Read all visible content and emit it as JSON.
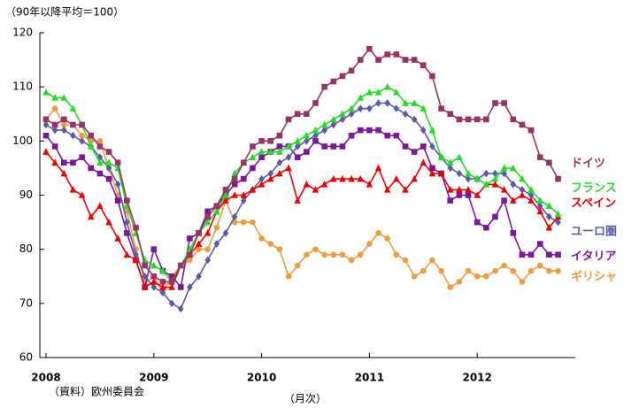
{
  "chart_data": {
    "type": "line",
    "ylabel": "（90年以降平均＝100）",
    "source": "（資料）欧州委員会",
    "xlabel": "（月次）",
    "categories": [
      "2008",
      null,
      null,
      null,
      null,
      null,
      null,
      null,
      null,
      null,
      null,
      null,
      "2009",
      null,
      null,
      null,
      null,
      null,
      null,
      null,
      null,
      null,
      null,
      null,
      "2010",
      null,
      null,
      null,
      null,
      null,
      null,
      null,
      null,
      null,
      null,
      null,
      "2011",
      null,
      null,
      null,
      null,
      null,
      null,
      null,
      null,
      null,
      null,
      null,
      "2012",
      null,
      null,
      null,
      null,
      null,
      null,
      null,
      null,
      null
    ],
    "ylim": [
      60,
      120
    ],
    "yticks": [
      60,
      70,
      80,
      90,
      100,
      110,
      120
    ],
    "grid": false,
    "series": [
      {
        "name": "ギリシャ",
        "color": "#f39a3c",
        "marker": "circle",
        "values": [
          104,
          106,
          103,
          103,
          101,
          100,
          100,
          95,
          90,
          87,
          80,
          74,
          75,
          72,
          75,
          77,
          78,
          80,
          80,
          84,
          89,
          85,
          85,
          85,
          82,
          81,
          80,
          75,
          77,
          79,
          80,
          79,
          79,
          79,
          78,
          79,
          81,
          83,
          82,
          79,
          78,
          75,
          76,
          78,
          76,
          73,
          74,
          76,
          75,
          75,
          76,
          77,
          76,
          74,
          76,
          77,
          76,
          76
        ]
      },
      {
        "name": "イタリア",
        "color": "#7a1a9a",
        "marker": "square",
        "values": [
          101,
          99,
          96,
          96,
          97,
          95,
          94,
          93,
          89,
          83,
          78,
          73,
          80,
          76,
          75,
          73,
          82,
          83,
          87,
          88,
          90,
          92,
          93,
          95,
          97,
          98,
          99,
          99,
          97,
          98,
          100,
          99,
          99,
          99,
          101,
          102,
          102,
          102,
          101,
          101,
          99,
          98,
          99,
          95,
          94,
          89,
          90,
          90,
          85,
          84,
          86,
          89,
          83,
          79,
          79,
          81,
          79,
          79
        ]
      },
      {
        "name": "ユーロ圏",
        "color": "#5a5aa8",
        "marker": "diamond",
        "values": [
          103,
          102,
          102,
          101,
          100,
          99,
          97,
          95,
          92,
          85,
          79,
          75,
          73,
          72,
          70,
          69,
          73,
          75,
          78,
          81,
          83,
          86,
          89,
          91,
          93,
          94,
          96,
          97,
          99,
          100,
          101,
          102,
          103,
          104,
          105,
          106,
          106,
          107,
          107,
          106,
          105,
          104,
          102,
          99,
          97,
          95,
          94,
          93,
          93,
          94,
          94,
          94,
          92,
          91,
          90,
          88,
          86,
          85
        ]
      },
      {
        "name": "スペイン",
        "color": "#ee0000",
        "marker": "triangle",
        "values": [
          98,
          96,
          94,
          91,
          90,
          86,
          88,
          85,
          82,
          79,
          78,
          73,
          74,
          73,
          73,
          77,
          79,
          81,
          83,
          87,
          89,
          90,
          90,
          91,
          92,
          93,
          94,
          95,
          89,
          92,
          91,
          92,
          93,
          93,
          93,
          93,
          92,
          95,
          91,
          93,
          91,
          93,
          96,
          94,
          94,
          91,
          91,
          91,
          90,
          92,
          92,
          91,
          89,
          90,
          89,
          87,
          84,
          86
        ]
      },
      {
        "name": "フランス",
        "color": "#22dd22",
        "marker": "triangle",
        "values": [
          109,
          108,
          108,
          106,
          103,
          99,
          96,
          96,
          95,
          88,
          83,
          78,
          77,
          76,
          74,
          77,
          80,
          83,
          85,
          87,
          90,
          94,
          96,
          97,
          98,
          98,
          98,
          99,
          100,
          101,
          102,
          103,
          104,
          105,
          106,
          108,
          109,
          109,
          110,
          109,
          107,
          107,
          106,
          102,
          97,
          96,
          97,
          94,
          93,
          92,
          93,
          95,
          95,
          93,
          91,
          89,
          88,
          86.5
        ]
      },
      {
        "name": "ドイツ",
        "color": "#993366",
        "marker": "square",
        "values": [
          104,
          103,
          104,
          103,
          103,
          101,
          99,
          98,
          96,
          89,
          84,
          77,
          75,
          74,
          74,
          77,
          79,
          83,
          86,
          88,
          91,
          93,
          96,
          99,
          100,
          100,
          101,
          104,
          105,
          105,
          107,
          110,
          111,
          112,
          113,
          115,
          117,
          115,
          116,
          116,
          115,
          115,
          114,
          112,
          106,
          105,
          104,
          104,
          104,
          104,
          107,
          107,
          104,
          103,
          102,
          97,
          96,
          93
        ]
      }
    ]
  }
}
